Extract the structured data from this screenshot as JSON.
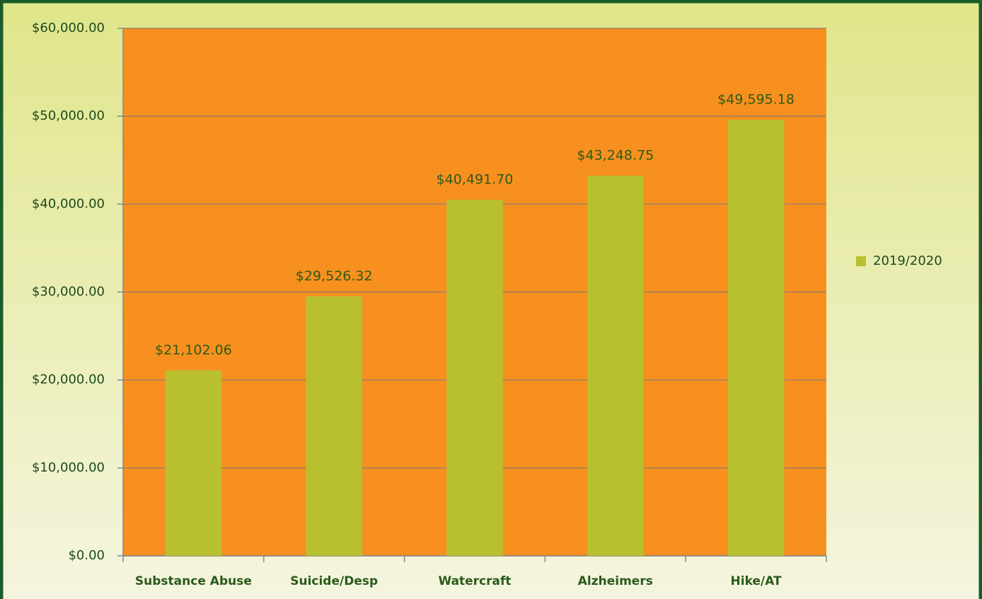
{
  "chart_data": {
    "type": "bar",
    "categories": [
      "Substance Abuse",
      "Suicide/Desp",
      "Watercraft",
      "Alzheimers",
      "Hike/AT"
    ],
    "series": [
      {
        "name": "2019/2020",
        "color": "#b8c030",
        "values": [
          21102.06,
          29526.32,
          40491.7,
          43248.75,
          49595.18
        ],
        "value_labels": [
          "$21,102.06",
          "$29,526.32",
          "$40,491.70",
          "$43,248.75",
          "$49,595.18"
        ]
      }
    ],
    "ylim": [
      0,
      60000
    ],
    "yticks": [
      {
        "value": 0,
        "label": "$0.00"
      },
      {
        "value": 10000,
        "label": "$10,000.00"
      },
      {
        "value": 20000,
        "label": "$20,000.00"
      },
      {
        "value": 30000,
        "label": "$30,000.00"
      },
      {
        "value": 40000,
        "label": "$40,000.00"
      },
      {
        "value": 50000,
        "label": "$50,000.00"
      },
      {
        "value": 60000,
        "label": "$60,000.00"
      }
    ],
    "grid": true,
    "plot_background": "#f7901e",
    "legend": "right"
  }
}
